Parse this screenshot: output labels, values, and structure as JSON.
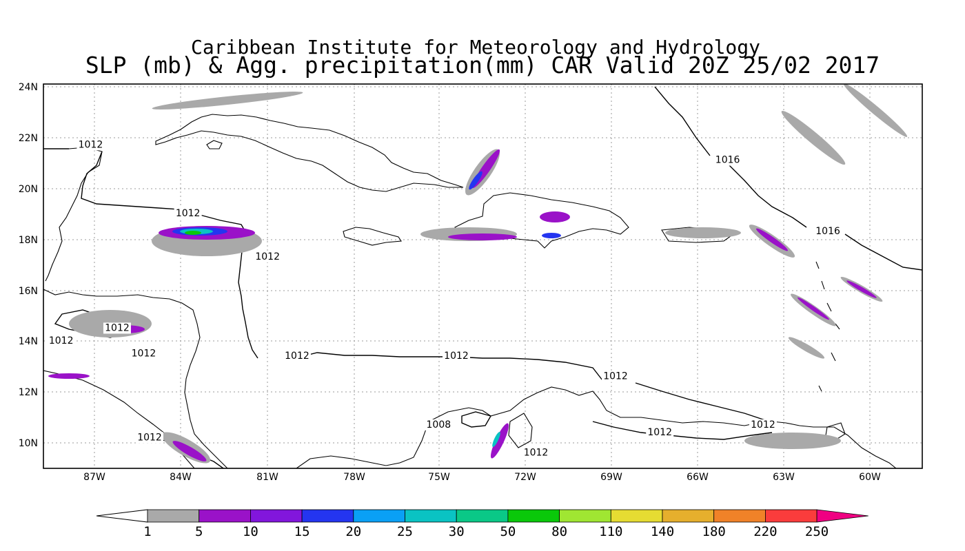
{
  "header": {
    "line1": "Caribbean Institute for Meteorology and Hydrology",
    "line2": "SLP (mb) & Agg. precipitation(mm) CAR Valid 20Z 25/02 2017"
  },
  "map": {
    "lat_range": [
      9,
      24.1
    ],
    "lon_range": [
      -88,
      -58.2
    ],
    "lat_ticks": [
      "24N",
      "22N",
      "20N",
      "18N",
      "16N",
      "14N",
      "12N",
      "10N"
    ],
    "lon_ticks": [
      "87W",
      "84W",
      "81W",
      "78W",
      "75W",
      "72W",
      "69W",
      "66W",
      "63W",
      "60W"
    ],
    "grid": "dotted",
    "isobar_labels": [
      {
        "text": "1012",
        "lon": -86.4,
        "lat": 21.6
      },
      {
        "text": "1016",
        "lon": -64.8,
        "lat": 21.0
      },
      {
        "text": "1012",
        "lon": -83.1,
        "lat": 18.9
      },
      {
        "text": "1016",
        "lon": -61.4,
        "lat": 18.2
      },
      {
        "text": "1012",
        "lon": -80.4,
        "lat": 17.2
      },
      {
        "text": "1012",
        "lon": -85.5,
        "lat": 14.4
      },
      {
        "text": "1012",
        "lon": -87.4,
        "lat": 13.9
      },
      {
        "text": "1012",
        "lon": -84.6,
        "lat": 13.4
      },
      {
        "text": "1012",
        "lon": -79.4,
        "lat": 13.3
      },
      {
        "text": "1012",
        "lon": -74.0,
        "lat": 13.3
      },
      {
        "text": "1012",
        "lon": -68.6,
        "lat": 12.5
      },
      {
        "text": "1008",
        "lon": -74.6,
        "lat": 10.6
      },
      {
        "text": "1012",
        "lon": -63.6,
        "lat": 10.6
      },
      {
        "text": "1012",
        "lon": -67.1,
        "lat": 10.3
      },
      {
        "text": "1012",
        "lon": -84.4,
        "lat": 10.1
      },
      {
        "text": "1012",
        "lon": -71.3,
        "lat": 9.5
      }
    ]
  },
  "colorbar": {
    "unit": "mm",
    "labels": [
      "1",
      "5",
      "10",
      "15",
      "20",
      "25",
      "30",
      "50",
      "80",
      "110",
      "140",
      "180",
      "220",
      "250"
    ],
    "colors": [
      "#a9a9a9",
      "#9a12c8",
      "#8216dc",
      "#2435f0",
      "#0aa0f5",
      "#0ac3c3",
      "#0ac887",
      "#0ac80a",
      "#a0e632",
      "#e6dc32",
      "#e6af2d",
      "#f08228",
      "#fa3c3c",
      "#f00082"
    ]
  }
}
